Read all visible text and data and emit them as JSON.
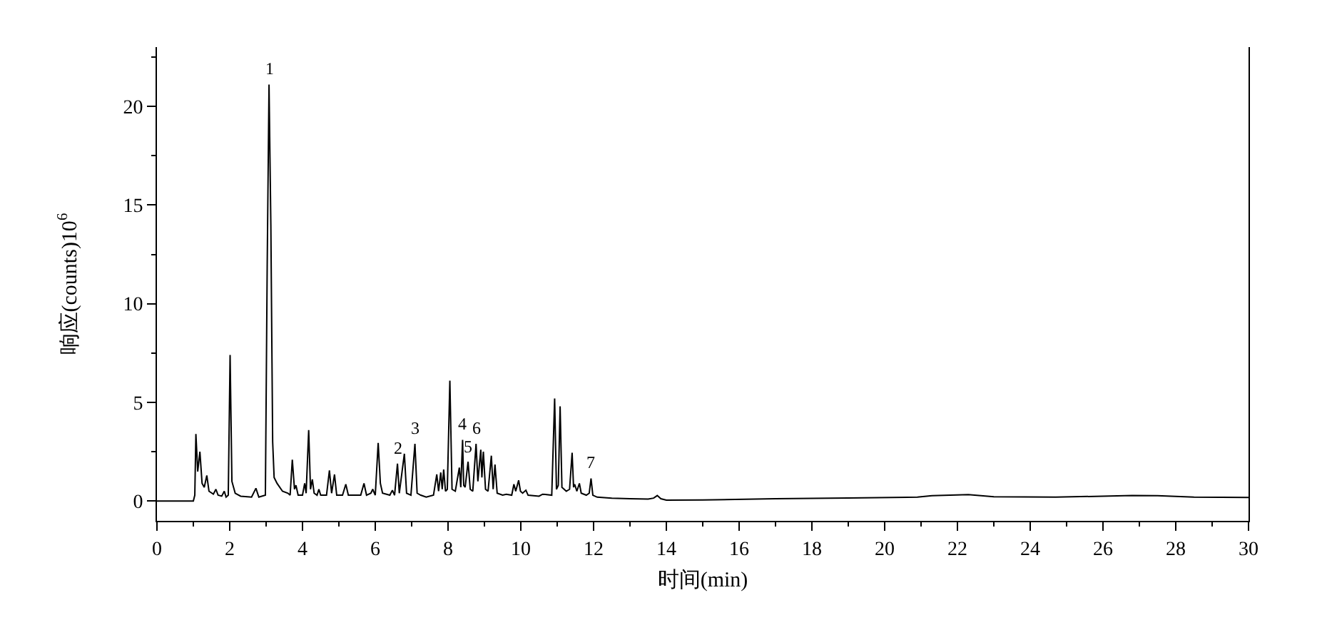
{
  "chart_data": {
    "type": "line",
    "xlabel": "时间(min)",
    "ylabel": "响应(counts)10$^{6}$",
    "x": [
      0,
      1.0,
      1.04,
      1.07,
      1.12,
      1.18,
      1.24,
      1.3,
      1.37,
      1.43,
      1.55,
      1.62,
      1.68,
      1.78,
      1.85,
      1.9,
      1.96,
      2.01,
      2.06,
      2.15,
      2.3,
      2.6,
      2.72,
      2.8,
      2.98,
      3.03,
      3.08,
      3.13,
      3.18,
      3.22,
      3.3,
      3.45,
      3.6,
      3.66,
      3.72,
      3.78,
      3.82,
      3.88,
      4.0,
      4.06,
      4.1,
      4.17,
      4.22,
      4.27,
      4.32,
      4.4,
      4.45,
      4.5,
      4.66,
      4.74,
      4.8,
      4.88,
      4.94,
      5.1,
      5.19,
      5.26,
      5.6,
      5.69,
      5.76,
      5.88,
      5.93,
      6.0,
      6.08,
      6.14,
      6.2,
      6.4,
      6.47,
      6.53,
      6.61,
      6.66,
      6.8,
      6.86,
      6.98,
      7.09,
      7.15,
      7.25,
      7.4,
      7.6,
      7.69,
      7.74,
      7.8,
      7.84,
      7.88,
      7.93,
      7.98,
      8.05,
      8.11,
      8.2,
      8.31,
      8.35,
      8.4,
      8.43,
      8.47,
      8.55,
      8.61,
      8.68,
      8.77,
      8.82,
      8.9,
      8.93,
      8.97,
      9.03,
      9.1,
      9.19,
      9.24,
      9.29,
      9.35,
      9.5,
      9.6,
      9.75,
      9.81,
      9.86,
      9.94,
      9.99,
      10.05,
      10.14,
      10.2,
      10.5,
      10.6,
      10.85,
      10.93,
      10.98,
      11.03,
      11.08,
      11.13,
      11.25,
      11.34,
      11.41,
      11.45,
      11.48,
      11.54,
      11.61,
      11.66,
      11.8,
      11.88,
      11.93,
      11.98,
      12.1,
      12.5,
      13.0,
      13.5,
      13.65,
      13.75,
      13.85,
      14.0,
      15.0,
      17.0,
      19.0,
      20.9,
      21.3,
      22.3,
      23.0,
      24.7,
      26.8,
      27.5,
      28.5,
      30.0
    ],
    "series": [
      {
        "color": "#000000",
        "values": [
          0,
          0,
          0.3,
          3.4,
          1.5,
          2.5,
          0.9,
          0.7,
          1.3,
          0.5,
          0.35,
          0.6,
          0.3,
          0.25,
          0.5,
          0.2,
          0.3,
          7.4,
          1.0,
          0.4,
          0.25,
          0.2,
          0.65,
          0.2,
          0.3,
          12,
          21.1,
          14,
          3,
          1.2,
          0.9,
          0.5,
          0.4,
          0.3,
          2.1,
          0.6,
          0.8,
          0.3,
          0.3,
          0.9,
          0.4,
          3.6,
          0.6,
          1.1,
          0.4,
          0.3,
          0.6,
          0.3,
          0.3,
          1.55,
          0.4,
          1.35,
          0.3,
          0.3,
          0.85,
          0.3,
          0.3,
          0.9,
          0.3,
          0.4,
          0.6,
          0.3,
          2.95,
          0.9,
          0.4,
          0.3,
          0.55,
          0.3,
          1.9,
          0.4,
          2.4,
          0.4,
          0.3,
          2.9,
          0.4,
          0.3,
          0.2,
          0.3,
          1.35,
          0.5,
          1.45,
          0.6,
          1.6,
          0.5,
          0.6,
          6.1,
          0.6,
          0.5,
          1.7,
          0.7,
          3.1,
          0.8,
          0.7,
          2.0,
          0.6,
          0.5,
          2.9,
          1.0,
          2.6,
          1.2,
          2.5,
          0.6,
          0.5,
          2.3,
          0.6,
          1.85,
          0.4,
          0.3,
          0.35,
          0.3,
          0.85,
          0.5,
          1.05,
          0.5,
          0.4,
          0.55,
          0.3,
          0.25,
          0.35,
          0.3,
          5.2,
          0.6,
          0.8,
          4.8,
          0.7,
          0.5,
          0.6,
          2.45,
          0.7,
          0.85,
          0.5,
          0.9,
          0.4,
          0.3,
          0.4,
          1.15,
          0.3,
          0.2,
          0.15,
          0.12,
          0.1,
          0.15,
          0.28,
          0.12,
          0.05,
          0.06,
          0.12,
          0.16,
          0.2,
          0.27,
          0.33,
          0.22,
          0.2,
          0.28,
          0.27,
          0.2,
          0.18
        ]
      }
    ],
    "xlim": [
      0,
      30
    ],
    "xticks": [
      0,
      {
        "value": 1,
        "label": null
      },
      2,
      {
        "value": 3,
        "label": null
      },
      4,
      {
        "value": 5,
        "label": null
      },
      6,
      {
        "value": 7,
        "label": null
      },
      8,
      {
        "value": 9,
        "label": null
      },
      10,
      {
        "value": 11,
        "label": null
      },
      12,
      {
        "value": 13,
        "label": null
      },
      14,
      {
        "value": 15,
        "label": null
      },
      16,
      {
        "value": 17,
        "label": null
      },
      18,
      {
        "value": 19,
        "label": null
      },
      20,
      {
        "value": 21,
        "label": null
      },
      22,
      {
        "value": 23,
        "label": null
      },
      24,
      {
        "value": 25,
        "label": null
      },
      26,
      {
        "value": 27,
        "label": null
      },
      28,
      {
        "value": 29,
        "label": null
      },
      30
    ],
    "ylim": [
      -1,
      23
    ],
    "yticks": [
      0,
      {
        "value": 2.5,
        "label": null
      },
      5,
      {
        "value": 7.5,
        "label": null
      },
      10,
      {
        "value": 12.5,
        "label": null
      },
      15,
      {
        "value": 17.5,
        "label": null
      },
      20,
      {
        "value": 22.5,
        "label": null
      }
    ],
    "annotations": [
      {
        "text": "1",
        "x": 3.08,
        "y": 21.1
      },
      {
        "text": "2",
        "x": 6.61,
        "y": 1.9
      },
      {
        "text": "3",
        "x": 7.09,
        "y": 2.9
      },
      {
        "text": "4",
        "x": 8.4,
        "y": 3.1
      },
      {
        "text": "5",
        "x": 8.55,
        "y": 2.0
      },
      {
        "text": "6",
        "x": 8.77,
        "y": 2.9
      },
      {
        "text": "7",
        "x": 11.93,
        "y": 1.15
      }
    ],
    "grid": false,
    "marker": "none",
    "line_style": "solid"
  }
}
